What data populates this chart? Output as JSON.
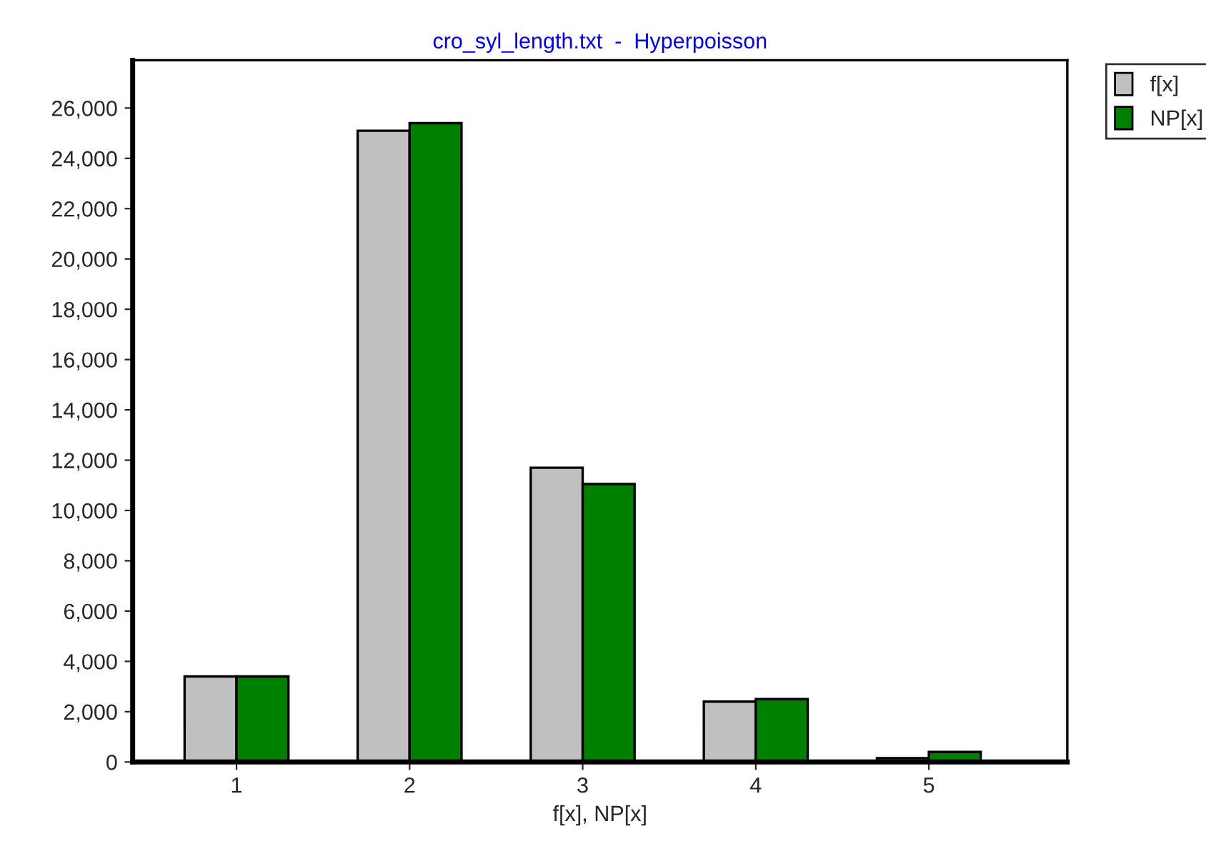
{
  "chart_data": {
    "type": "bar",
    "title": "cro_syl_length.txt  -  Hyperpoisson",
    "xlabel": "f[x], NP[x]",
    "categories": [
      "1",
      "2",
      "3",
      "4",
      "5"
    ],
    "series": [
      {
        "name": "f[x]",
        "color": "#c0c0c0",
        "values": [
          3400,
          25100,
          11700,
          2400,
          150
        ]
      },
      {
        "name": "NP[x]",
        "color": "#008000",
        "values": [
          3400,
          25400,
          11050,
          2500,
          400
        ]
      }
    ],
    "ylim": [
      0,
      27900
    ],
    "yticks": [
      {
        "value": 0,
        "label": "0"
      },
      {
        "value": 2000,
        "label": "2,000"
      },
      {
        "value": 4000,
        "label": "4,000"
      },
      {
        "value": 6000,
        "label": "6,000"
      },
      {
        "value": 8000,
        "label": "8,000"
      },
      {
        "value": 10000,
        "label": "10,000"
      },
      {
        "value": 12000,
        "label": "12,000"
      },
      {
        "value": 14000,
        "label": "14,000"
      },
      {
        "value": 16000,
        "label": "16,000"
      },
      {
        "value": 18000,
        "label": "18,000"
      },
      {
        "value": 20000,
        "label": "20,000"
      },
      {
        "value": 22000,
        "label": "22,000"
      },
      {
        "value": 24000,
        "label": "24,000"
      },
      {
        "value": 26000,
        "label": "26,000"
      }
    ],
    "grid": false,
    "legend": "top right"
  }
}
